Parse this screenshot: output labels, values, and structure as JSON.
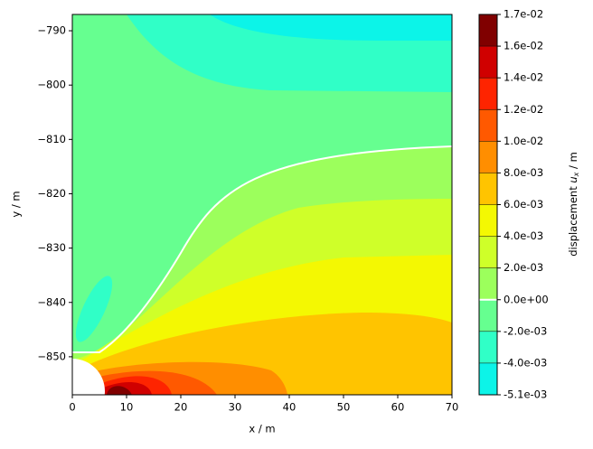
{
  "chart_data": {
    "type": "contour",
    "xlabel": "x / m",
    "ylabel": "y / m",
    "xlim": [
      0,
      70
    ],
    "ylim": [
      -857,
      -787
    ],
    "xticks": [
      0,
      10,
      20,
      30,
      40,
      50,
      60,
      70
    ],
    "yticks": [
      {
        "value": -850,
        "label": "−850"
      },
      {
        "value": -840,
        "label": "−840"
      },
      {
        "value": -830,
        "label": "−830"
      },
      {
        "value": -820,
        "label": "−820"
      },
      {
        "value": -810,
        "label": "−810"
      },
      {
        "value": -800,
        "label": "−800"
      },
      {
        "value": -790,
        "label": "−790"
      }
    ],
    "colorbar_label": {
      "prefix": "displacement ",
      "symbol": "u",
      "subscript": "x",
      "suffix": " / m"
    },
    "levels": [
      {
        "value": -0.0051,
        "label": "-5.1e-03"
      },
      {
        "value": -0.004,
        "label": "-4.0e-03"
      },
      {
        "value": -0.002,
        "label": "-2.0e-03"
      },
      {
        "value": 0,
        "label": "0.0e+00"
      },
      {
        "value": 0.002,
        "label": "2.0e-03"
      },
      {
        "value": 0.004,
        "label": "4.0e-03"
      },
      {
        "value": 0.006,
        "label": "6.0e-03"
      },
      {
        "value": 0.008,
        "label": "8.0e-03"
      },
      {
        "value": 0.01,
        "label": "1.0e-02"
      },
      {
        "value": 0.012,
        "label": "1.2e-02"
      },
      {
        "value": 0.014,
        "label": "1.4e-02"
      },
      {
        "value": 0.016,
        "label": "1.6e-02"
      },
      {
        "value": 0.017,
        "label": "1.7e-02"
      }
    ],
    "colors": [
      "#0cf4e8",
      "#30ffc7",
      "#66ff90",
      "#9cff5c",
      "#cfff29",
      "#f4f802",
      "#ffc400",
      "#ff8e00",
      "#ff5900",
      "#fe2400",
      "#d00000",
      "#800000"
    ],
    "contour_line_color": "#ffffff"
  }
}
